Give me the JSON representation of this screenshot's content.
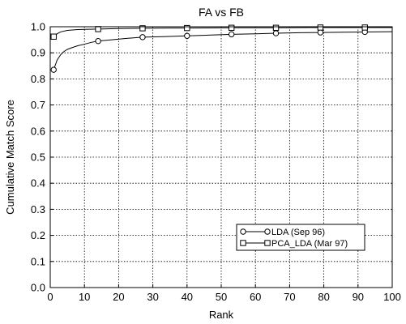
{
  "chart_data": {
    "type": "line",
    "title": "FA vs FB",
    "xlabel": "Rank",
    "ylabel": "Cumulative Match Score",
    "xlim": [
      0,
      100
    ],
    "ylim": [
      0,
      1.0
    ],
    "xticks": [
      0,
      10,
      20,
      30,
      40,
      50,
      60,
      70,
      80,
      90,
      100
    ],
    "yticks": [
      0.0,
      0.1,
      0.2,
      0.3,
      0.4,
      0.5,
      0.6,
      0.7,
      0.8,
      0.9,
      1.0
    ],
    "xtick_labels": [
      "0",
      "10",
      "20",
      "30",
      "40",
      "50",
      "60",
      "70",
      "80",
      "90",
      "100"
    ],
    "ytick_labels": [
      "0.0",
      "0.1",
      "0.2",
      "0.3",
      "0.4",
      "0.5",
      "0.6",
      "0.7",
      "0.8",
      "0.9",
      "1.0"
    ],
    "grid": true,
    "legend_position": "bottom-right",
    "series": [
      {
        "name": "LDA (Sep 96)",
        "marker": "circle",
        "line": [
          [
            1,
            0.835
          ],
          [
            2,
            0.872
          ],
          [
            3,
            0.892
          ],
          [
            4,
            0.905
          ],
          [
            5,
            0.913
          ],
          [
            6,
            0.918
          ],
          [
            8,
            0.927
          ],
          [
            10,
            0.933
          ],
          [
            12,
            0.94
          ],
          [
            14,
            0.945
          ],
          [
            18,
            0.95
          ],
          [
            22,
            0.955
          ],
          [
            27,
            0.96
          ],
          [
            33,
            0.962
          ],
          [
            40,
            0.965
          ],
          [
            47,
            0.968
          ],
          [
            53,
            0.971
          ],
          [
            60,
            0.973
          ],
          [
            66,
            0.975
          ],
          [
            73,
            0.977
          ],
          [
            79,
            0.978
          ],
          [
            86,
            0.979
          ],
          [
            92,
            0.98
          ],
          [
            100,
            0.981
          ]
        ],
        "markers": [
          [
            1,
            0.835
          ],
          [
            14,
            0.945
          ],
          [
            27,
            0.96
          ],
          [
            40,
            0.965
          ],
          [
            53,
            0.971
          ],
          [
            66,
            0.975
          ],
          [
            79,
            0.978
          ],
          [
            92,
            0.98
          ]
        ]
      },
      {
        "name": "PCA_LDA (Mar 97)",
        "marker": "square",
        "line": [
          [
            1,
            0.962
          ],
          [
            2,
            0.973
          ],
          [
            3,
            0.98
          ],
          [
            5,
            0.986
          ],
          [
            8,
            0.989
          ],
          [
            10,
            0.99
          ],
          [
            14,
            0.991
          ],
          [
            20,
            0.993
          ],
          [
            27,
            0.994
          ],
          [
            35,
            0.995
          ],
          [
            40,
            0.995
          ],
          [
            53,
            0.996
          ],
          [
            66,
            0.996
          ],
          [
            79,
            0.997
          ],
          [
            92,
            0.997
          ],
          [
            100,
            0.997
          ]
        ],
        "markers": [
          [
            1,
            0.962
          ],
          [
            14,
            0.991
          ],
          [
            27,
            0.994
          ],
          [
            40,
            0.995
          ],
          [
            53,
            0.996
          ],
          [
            66,
            0.996
          ],
          [
            79,
            0.997
          ],
          [
            92,
            0.997
          ]
        ]
      }
    ]
  }
}
